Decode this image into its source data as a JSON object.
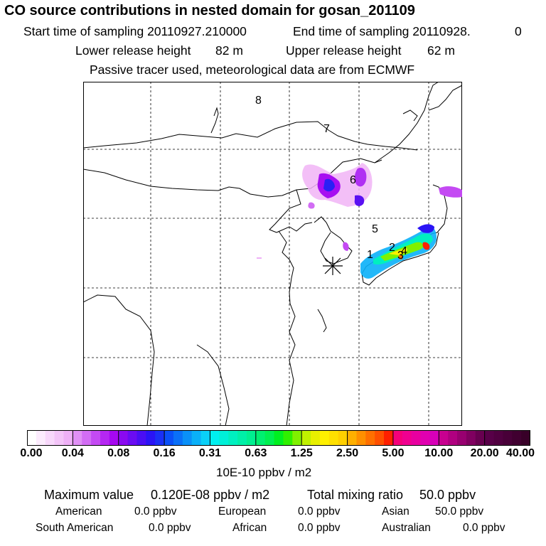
{
  "header": {
    "title": "CO  source contributions in nested domain for gosan_201109",
    "start_label": "Start time of sampling 20110927.210000",
    "end_label": "End time of sampling 20110928.",
    "end_suffix": "0",
    "lower_height_label": "Lower release height",
    "lower_height_value": "82 m",
    "upper_height_label": "Upper release height",
    "upper_height_value": "62 m",
    "note": "Passive tracer used, meteorological data are from ECMWF"
  },
  "map": {
    "region_labels": [
      "8",
      "7",
      "6",
      "5",
      "1",
      "2",
      "3",
      "4"
    ],
    "receptor": "gosan"
  },
  "colorbar": {
    "ticks": [
      "0.00",
      "0.04",
      "0.08",
      "0.16",
      "0.31",
      "0.63",
      "1.25",
      "2.50",
      "5.00",
      "10.00",
      "20.00",
      "40.00"
    ],
    "unit": "10E-10 ppbv / m2",
    "colors": [
      [
        "#ffffff",
        "#fcecfd",
        "#f8d8fb",
        "#f3c4f8",
        "#eeb0f6"
      ],
      [
        "#e090f5",
        "#d26df4",
        "#c44af3",
        "#b527f2",
        "#a608f0"
      ],
      [
        "#8a0af0",
        "#6a0cf2",
        "#4a0ef3",
        "#2a14f5",
        "#1a30f6"
      ],
      [
        "#0a50f8",
        "#0a70f8",
        "#0a90f8",
        "#0ab0f8",
        "#0ad0f8"
      ],
      [
        "#00f0f0",
        "#00f0d8",
        "#00f0c0",
        "#00f0a8",
        "#00f090"
      ],
      [
        "#00f070",
        "#00f050",
        "#00f020",
        "#30f000",
        "#80f000"
      ],
      [
        "#c0f000",
        "#e8f000",
        "#fff000",
        "#ffe000",
        "#ffd000"
      ],
      [
        "#ffb000",
        "#ff9000",
        "#ff7000",
        "#ff5000",
        "#ff2000"
      ],
      [
        "#f5007a",
        "#f00090",
        "#e800a0",
        "#e000b0",
        "#d800b8"
      ],
      [
        "#c80090",
        "#b00080",
        "#980070",
        "#800060",
        "#680050"
      ],
      [
        "#580048",
        "#500040",
        "#480038",
        "#400030",
        "#380028"
      ]
    ]
  },
  "stats": {
    "max_label": "Maximum value",
    "max_value": "0.120E-08 ppbv / m2",
    "total_label": "Total mixing ratio",
    "total_value": "50.0 ppbv",
    "regions": [
      {
        "name": "American",
        "value": "0.0 ppbv"
      },
      {
        "name": "European",
        "value": "0.0 ppbv"
      },
      {
        "name": "Asian",
        "value": "50.0 ppbv"
      },
      {
        "name": "South American",
        "value": "0.0 ppbv"
      },
      {
        "name": "African",
        "value": "0.0 ppbv"
      },
      {
        "name": "Australian",
        "value": "0.0 ppbv"
      }
    ]
  }
}
